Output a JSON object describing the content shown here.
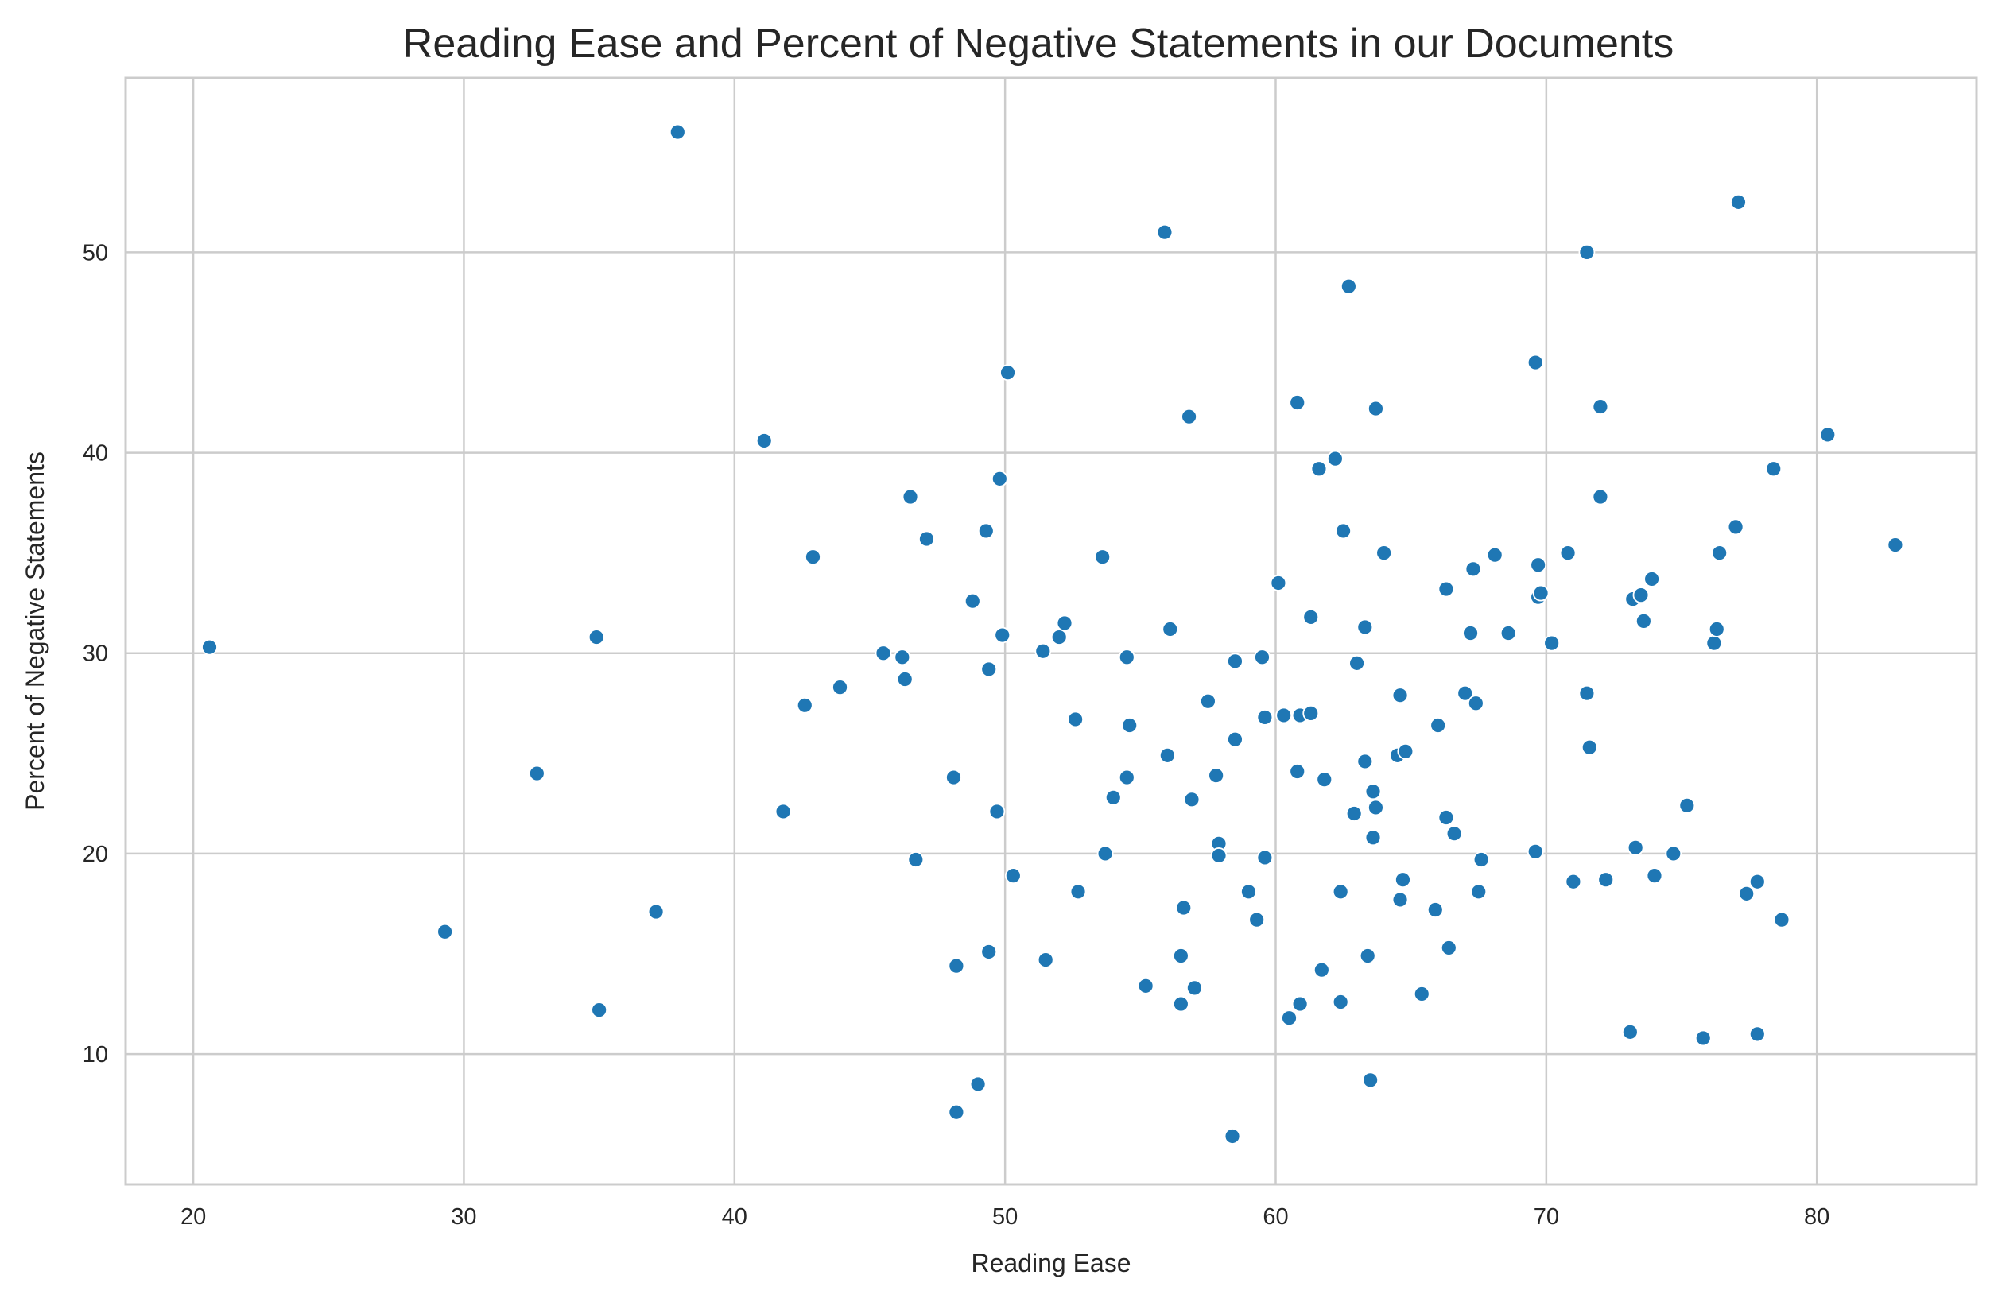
{
  "chart_data": {
    "type": "scatter",
    "title": "Reading Ease and Percent of Negative Statements in our Documents",
    "xlabel": "Reading Ease",
    "ylabel": "Percent of Negative Statements",
    "xlim": [
      17.5,
      85.9
    ],
    "ylim": [
      3.5,
      58.7
    ],
    "xticks": [
      20,
      30,
      40,
      50,
      60,
      70,
      80
    ],
    "yticks": [
      10,
      20,
      30,
      40,
      50
    ],
    "grid": true,
    "legend": "none",
    "color": "#1f77b4",
    "points": [
      [
        20.6,
        30.3
      ],
      [
        29.3,
        16.1
      ],
      [
        32.7,
        24.0
      ],
      [
        34.9,
        30.8
      ],
      [
        35.0,
        12.2
      ],
      [
        37.1,
        17.1
      ],
      [
        37.9,
        56.0
      ],
      [
        41.1,
        40.6
      ],
      [
        41.8,
        22.1
      ],
      [
        42.6,
        27.4
      ],
      [
        42.9,
        34.8
      ],
      [
        43.9,
        28.3
      ],
      [
        45.5,
        30.0
      ],
      [
        46.2,
        29.8
      ],
      [
        46.3,
        28.7
      ],
      [
        46.5,
        37.8
      ],
      [
        46.7,
        19.7
      ],
      [
        47.1,
        35.7
      ],
      [
        48.1,
        23.8
      ],
      [
        48.2,
        14.4
      ],
      [
        48.2,
        7.1
      ],
      [
        48.8,
        32.6
      ],
      [
        49.0,
        8.5
      ],
      [
        49.3,
        36.1
      ],
      [
        49.4,
        15.1
      ],
      [
        49.4,
        29.2
      ],
      [
        49.7,
        22.1
      ],
      [
        49.8,
        38.7
      ],
      [
        49.9,
        30.9
      ],
      [
        50.1,
        44.0
      ],
      [
        50.3,
        18.9
      ],
      [
        51.4,
        30.1
      ],
      [
        51.5,
        14.7
      ],
      [
        52.0,
        30.8
      ],
      [
        52.2,
        31.5
      ],
      [
        52.6,
        26.7
      ],
      [
        52.7,
        18.1
      ],
      [
        53.6,
        34.8
      ],
      [
        53.7,
        20.0
      ],
      [
        54.0,
        22.8
      ],
      [
        54.5,
        23.8
      ],
      [
        54.5,
        29.8
      ],
      [
        54.6,
        26.4
      ],
      [
        55.2,
        13.4
      ],
      [
        55.9,
        51.0
      ],
      [
        56.0,
        24.9
      ],
      [
        56.1,
        31.2
      ],
      [
        56.5,
        14.9
      ],
      [
        56.5,
        12.5
      ],
      [
        56.6,
        17.3
      ],
      [
        56.8,
        41.8
      ],
      [
        56.9,
        22.7
      ],
      [
        57.0,
        13.3
      ],
      [
        57.5,
        27.6
      ],
      [
        57.8,
        23.9
      ],
      [
        57.9,
        20.5
      ],
      [
        57.9,
        19.9
      ],
      [
        58.4,
        5.9
      ],
      [
        58.5,
        29.6
      ],
      [
        58.5,
        25.7
      ],
      [
        59.0,
        18.1
      ],
      [
        59.3,
        16.7
      ],
      [
        59.5,
        29.8
      ],
      [
        59.6,
        19.8
      ],
      [
        59.6,
        26.8
      ],
      [
        60.1,
        33.5
      ],
      [
        60.3,
        26.9
      ],
      [
        60.5,
        11.8
      ],
      [
        60.8,
        42.5
      ],
      [
        60.8,
        24.1
      ],
      [
        60.9,
        26.9
      ],
      [
        60.9,
        12.5
      ],
      [
        61.3,
        27.0
      ],
      [
        61.3,
        31.8
      ],
      [
        61.6,
        39.2
      ],
      [
        61.7,
        14.2
      ],
      [
        61.8,
        23.7
      ],
      [
        62.2,
        39.7
      ],
      [
        62.4,
        18.1
      ],
      [
        62.4,
        12.6
      ],
      [
        62.5,
        36.1
      ],
      [
        62.7,
        48.3
      ],
      [
        62.9,
        22.0
      ],
      [
        63.0,
        29.5
      ],
      [
        63.3,
        31.3
      ],
      [
        63.3,
        24.6
      ],
      [
        63.4,
        14.9
      ],
      [
        63.5,
        8.7
      ],
      [
        63.6,
        23.1
      ],
      [
        63.6,
        20.8
      ],
      [
        63.7,
        22.3
      ],
      [
        63.7,
        42.2
      ],
      [
        64.0,
        35.0
      ],
      [
        64.5,
        24.9
      ],
      [
        64.6,
        17.7
      ],
      [
        64.6,
        27.9
      ],
      [
        64.7,
        18.7
      ],
      [
        64.8,
        25.1
      ],
      [
        65.4,
        13.0
      ],
      [
        65.9,
        17.2
      ],
      [
        66.0,
        26.4
      ],
      [
        66.3,
        33.2
      ],
      [
        66.3,
        21.8
      ],
      [
        66.4,
        15.3
      ],
      [
        66.6,
        21.0
      ],
      [
        67.0,
        28.0
      ],
      [
        67.2,
        31.0
      ],
      [
        67.3,
        34.2
      ],
      [
        67.4,
        27.5
      ],
      [
        67.5,
        18.1
      ],
      [
        67.6,
        19.7
      ],
      [
        68.1,
        34.9
      ],
      [
        68.6,
        31.0
      ],
      [
        69.6,
        44.5
      ],
      [
        69.6,
        20.1
      ],
      [
        69.7,
        34.4
      ],
      [
        69.7,
        32.8
      ],
      [
        69.8,
        33.0
      ],
      [
        70.2,
        30.5
      ],
      [
        70.8,
        35.0
      ],
      [
        71.0,
        18.6
      ],
      [
        71.5,
        50.0
      ],
      [
        71.5,
        28.0
      ],
      [
        71.6,
        25.3
      ],
      [
        72.0,
        42.3
      ],
      [
        72.0,
        37.8
      ],
      [
        72.2,
        18.7
      ],
      [
        73.1,
        11.1
      ],
      [
        73.2,
        32.7
      ],
      [
        73.3,
        20.3
      ],
      [
        73.5,
        32.9
      ],
      [
        73.6,
        31.6
      ],
      [
        73.9,
        33.7
      ],
      [
        74.0,
        18.9
      ],
      [
        74.7,
        20.0
      ],
      [
        75.2,
        22.4
      ],
      [
        75.8,
        10.8
      ],
      [
        76.2,
        30.5
      ],
      [
        76.3,
        31.2
      ],
      [
        76.4,
        35.0
      ],
      [
        77.1,
        52.5
      ],
      [
        77.0,
        36.3
      ],
      [
        77.4,
        18.0
      ],
      [
        77.8,
        18.6
      ],
      [
        77.8,
        11.0
      ],
      [
        78.4,
        39.2
      ],
      [
        78.7,
        16.7
      ],
      [
        80.4,
        40.9
      ],
      [
        82.9,
        35.4
      ]
    ]
  }
}
